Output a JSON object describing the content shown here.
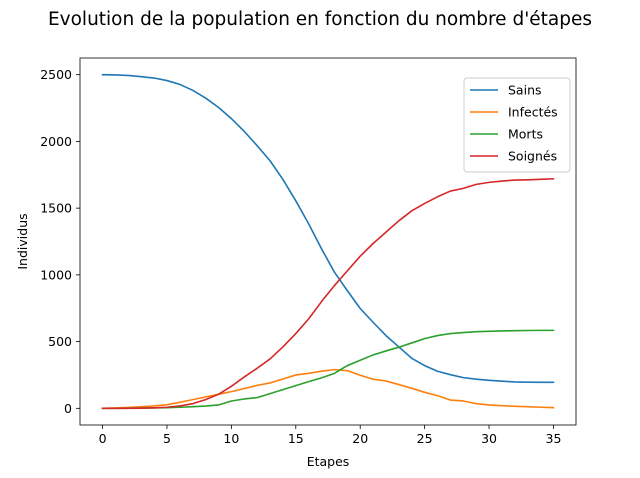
{
  "chart_data": {
    "type": "line",
    "title": "Evolution de la population en fonction du nombre d'étapes",
    "xlabel": "Etapes",
    "ylabel": "Individus",
    "xlim": [
      -1.75,
      36.75
    ],
    "ylim": [
      -125,
      2625
    ],
    "xticks": [
      0,
      5,
      10,
      15,
      20,
      25,
      30,
      35
    ],
    "yticks": [
      0,
      500,
      1000,
      1500,
      2000,
      2500
    ],
    "grid": false,
    "legend_position": "upper-right",
    "x": [
      0,
      1,
      2,
      3,
      4,
      5,
      6,
      7,
      8,
      9,
      10,
      11,
      12,
      13,
      14,
      15,
      16,
      17,
      18,
      19,
      20,
      21,
      22,
      23,
      24,
      25,
      26,
      27,
      28,
      29,
      30,
      31,
      32,
      33,
      34,
      35
    ],
    "series": [
      {
        "name": "Sains",
        "color": "#1f77b4",
        "values": [
          2500,
          2498,
          2494,
          2485,
          2475,
          2456,
          2427,
          2383,
          2325,
          2255,
          2171,
          2075,
          1968,
          1855,
          1715,
          1555,
          1382,
          1195,
          1020,
          882,
          748,
          645,
          545,
          460,
          375,
          320,
          278,
          252,
          230,
          218,
          210,
          203,
          198,
          196,
          195,
          195
        ]
      },
      {
        "name": "Infectés",
        "color": "#ff7f0e",
        "values": [
          0,
          3,
          7,
          12,
          18,
          27,
          45,
          65,
          85,
          105,
          125,
          148,
          172,
          190,
          220,
          250,
          262,
          278,
          290,
          282,
          248,
          218,
          205,
          178,
          150,
          120,
          95,
          62,
          55,
          35,
          25,
          20,
          15,
          12,
          8,
          5
        ]
      },
      {
        "name": "Morts",
        "color": "#2ca02c",
        "values": [
          0,
          0,
          1,
          2,
          3,
          5,
          8,
          12,
          17,
          25,
          55,
          70,
          80,
          110,
          140,
          170,
          200,
          228,
          262,
          320,
          360,
          400,
          430,
          458,
          490,
          522,
          545,
          560,
          568,
          574,
          577,
          580,
          582,
          583,
          584,
          584
        ]
      },
      {
        "name": "Soignés",
        "color": "#d62728",
        "values": [
          0,
          0,
          0,
          1,
          4,
          8,
          18,
          35,
          65,
          105,
          165,
          235,
          300,
          370,
          460,
          560,
          670,
          800,
          920,
          1030,
          1140,
          1235,
          1320,
          1405,
          1480,
          1535,
          1585,
          1628,
          1648,
          1678,
          1693,
          1703,
          1710,
          1712,
          1716,
          1720
        ]
      }
    ]
  }
}
